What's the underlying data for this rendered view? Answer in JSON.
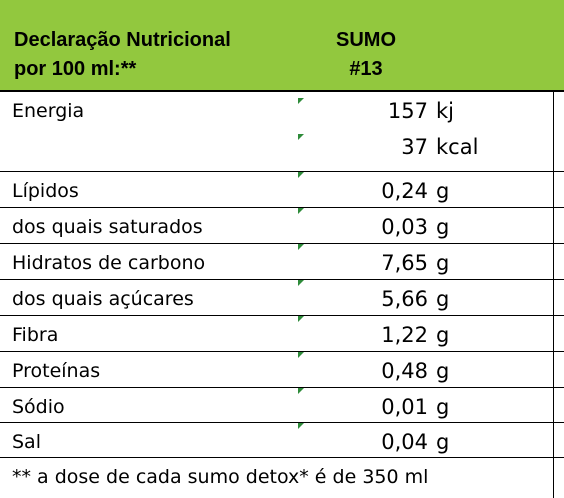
{
  "header": {
    "title_line1": "Declaração Nutricional",
    "title_line2": "por 100 ml:**",
    "product_line1": "SUMO",
    "product_line2": "#13"
  },
  "rows": [
    {
      "label": "Energia",
      "value": "157",
      "unit": "kj",
      "value2": "37",
      "unit2": "kcal"
    },
    {
      "label": "Lípidos",
      "value": "0,24",
      "unit": "g"
    },
    {
      "label": "dos quais saturados",
      "value": "0,03",
      "unit": "g"
    },
    {
      "label": "Hidratos de carbono",
      "value": "7,65",
      "unit": "g"
    },
    {
      "label": "dos quais açúcares",
      "value": "5,66",
      "unit": "g"
    },
    {
      "label": "Fibra",
      "value": "1,22",
      "unit": "g"
    },
    {
      "label": "Proteínas",
      "value": "0,48",
      "unit": "g"
    },
    {
      "label": "Sódio",
      "value": "0,01",
      "unit": "g"
    },
    {
      "label": "Sal",
      "value": "0,04",
      "unit": "g"
    }
  ],
  "footer": {
    "note": "** a dose de cada sumo detox* é de 350 ml"
  },
  "colors": {
    "header_background": "#92c83e",
    "cell_marker": "#2e8b3a"
  }
}
